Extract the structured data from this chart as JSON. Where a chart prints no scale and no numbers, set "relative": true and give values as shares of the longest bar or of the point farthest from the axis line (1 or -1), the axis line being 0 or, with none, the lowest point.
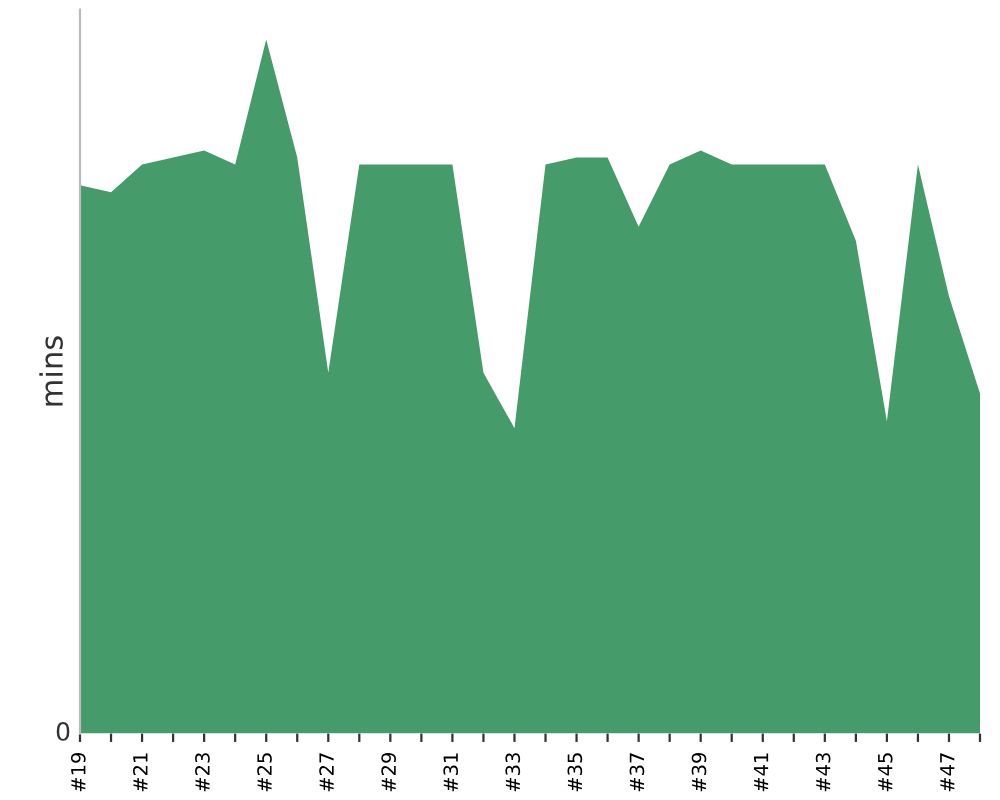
{
  "chart_data": {
    "type": "area",
    "ylabel": "mins",
    "relative": true,
    "annotations": [
      "0"
    ],
    "categories": [
      "#19",
      null,
      "#21",
      null,
      "#23",
      null,
      "#25",
      null,
      "#27",
      null,
      "#29",
      null,
      "#31",
      null,
      "#33",
      null,
      "#35",
      null,
      "#37",
      null,
      "#39",
      null,
      "#41",
      null,
      "#43",
      null,
      "#45",
      null,
      "#47",
      null
    ],
    "series": [
      {
        "color": "#469b6b",
        "values": [
          0.79,
          0.78,
          0.82,
          0.83,
          0.84,
          0.82,
          1,
          0.83,
          0.52,
          0.82,
          0.82,
          0.82,
          0.82,
          0.52,
          0.44,
          0.82,
          0.83,
          0.83,
          0.73,
          0.82,
          0.84,
          0.82,
          0.82,
          0.82,
          0.82,
          0.71,
          0.45,
          0.82,
          0.63,
          0.49
        ]
      }
    ]
  }
}
